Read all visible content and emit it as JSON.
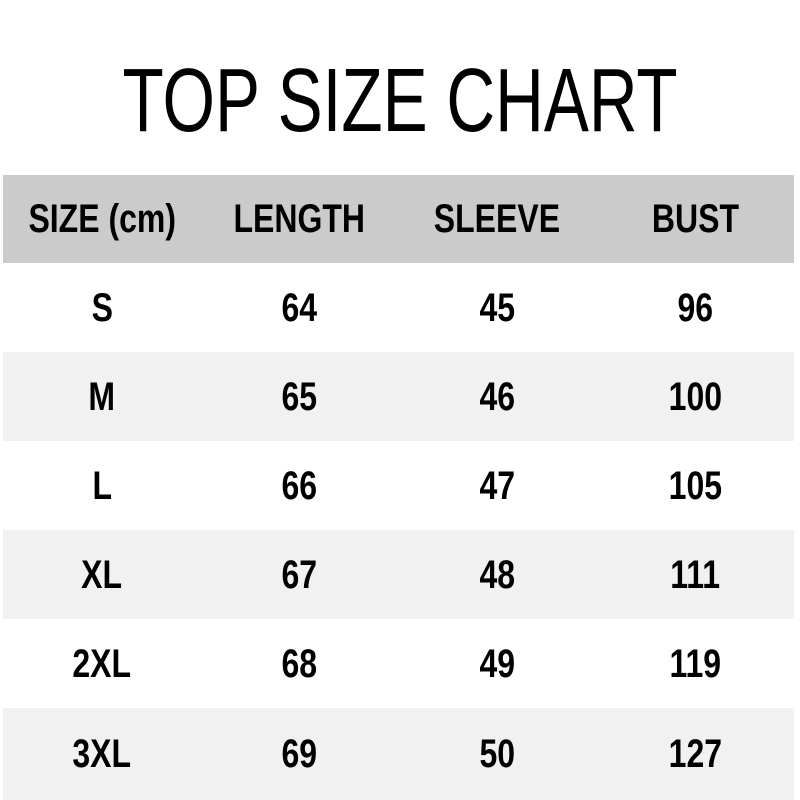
{
  "title": "TOP SIZE CHART",
  "colors": {
    "background": "#ffffff",
    "header_row_bg": "#cbcbcb",
    "stripe_row_bg": "#f1f1f1",
    "text": "#000000"
  },
  "chart_data": {
    "type": "table",
    "title": "TOP SIZE CHART",
    "unit": "cm",
    "columns": [
      "SIZE (cm)",
      "LENGTH",
      "SLEEVE",
      "BUST"
    ],
    "rows": [
      [
        "S",
        "64",
        "45",
        "96"
      ],
      [
        "M",
        "65",
        "46",
        "100"
      ],
      [
        "L",
        "66",
        "47",
        "105"
      ],
      [
        "XL",
        "67",
        "48",
        "111"
      ],
      [
        "2XL",
        "68",
        "49",
        "119"
      ],
      [
        "3XL",
        "69",
        "50",
        "127"
      ]
    ]
  }
}
